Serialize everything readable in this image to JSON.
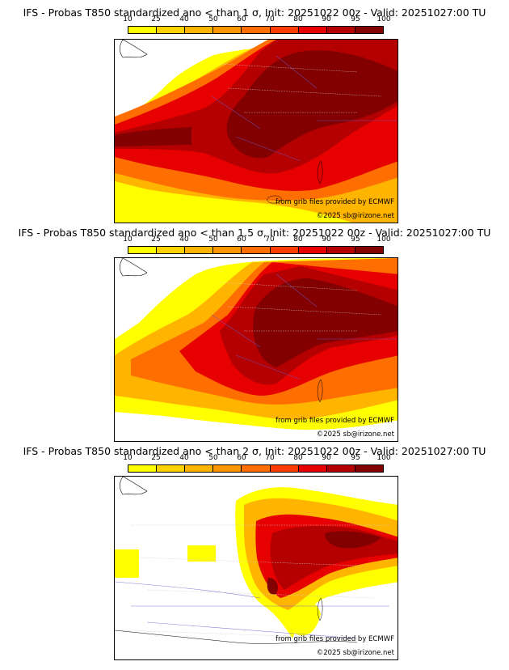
{
  "colorbar": {
    "ticks": [
      "10",
      "25",
      "40",
      "50",
      "60",
      "70",
      "80",
      "90",
      "95",
      "100"
    ],
    "colors": [
      "#ffff00",
      "#ffd200",
      "#ffb400",
      "#ff9600",
      "#ff6e00",
      "#ff3c00",
      "#e60000",
      "#b40000",
      "#820000",
      "#5a0000"
    ]
  },
  "panels": [
    {
      "title": "IFS - Probas T850  standardized ano < than 1 σ, Init: 20251022 00z - Valid: 20251027:00 TU",
      "credit_source": "from grib files provided by ECMWF",
      "credit_copyright": "©2025 sb@irizone.net"
    },
    {
      "title": "IFS - Probas T850  standardized ano < than 1.5 σ, Init: 20251022 00z - Valid: 20251027:00 TU",
      "credit_source": "from grib files provided by ECMWF",
      "credit_copyright": "©2025 sb@irizone.net"
    },
    {
      "title": "IFS - Probas T850  standardized ano < than 2 σ, Init: 20251022 00z - Valid: 20251027:00 TU",
      "credit_source": "from grib files provided by ECMWF",
      "credit_copyright": "©2025 sb@irizone.net"
    }
  ]
}
